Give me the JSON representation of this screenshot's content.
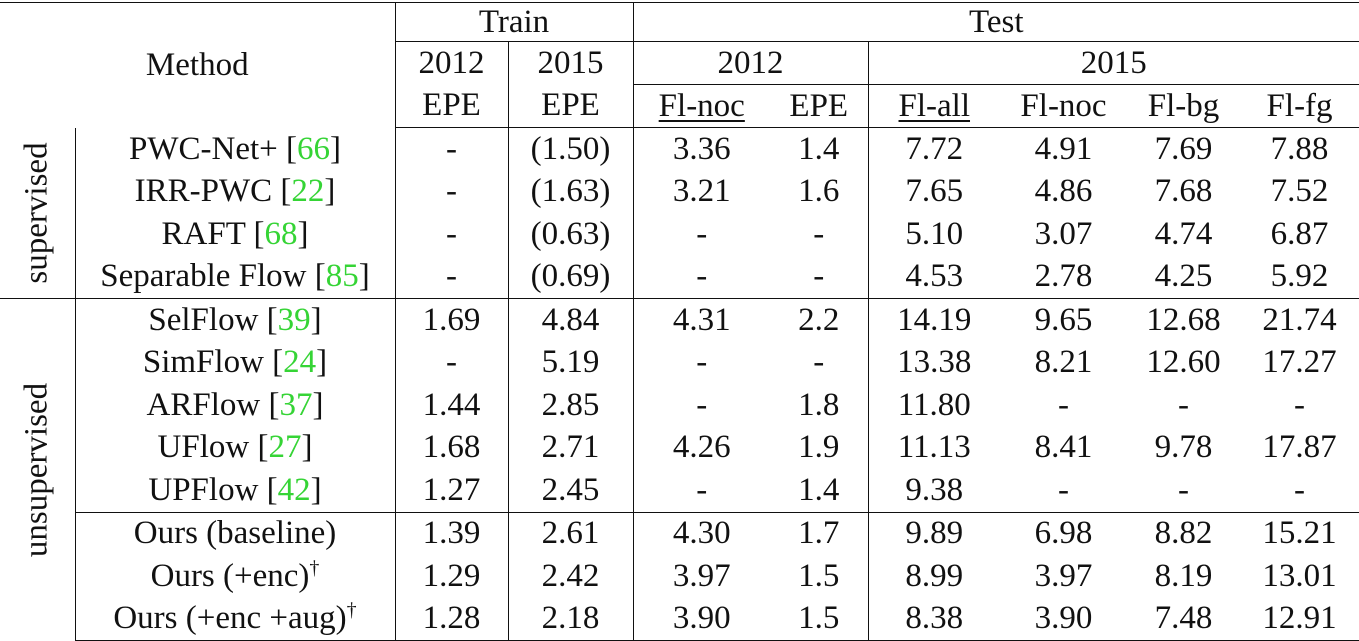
{
  "header": {
    "method": "Method",
    "train": "Train",
    "test": "Test",
    "train_years": [
      "2012",
      "2015"
    ],
    "test_year_2012": "2012",
    "test_year_2015": "2015",
    "metrics": {
      "train_2012": "EPE",
      "train_2015": "EPE",
      "test_2012_flnoc": "Fl-noc",
      "test_2012_epe": "EPE",
      "test_2015_flall": "Fl-all",
      "test_2015_flnoc": "Fl-noc",
      "test_2015_flbg": "Fl-bg",
      "test_2015_flfg": "Fl-fg"
    }
  },
  "groups": {
    "supervised": "supervised",
    "unsupervised": "unsupervised"
  },
  "rows": [
    {
      "name": "PWC-Net+  [",
      "cite": "66",
      "suffix": "]",
      "cells": [
        "-",
        "(1.50)",
        "3.36",
        "1.4",
        "7.72",
        "4.91",
        "7.69",
        "7.88"
      ]
    },
    {
      "name": "IRR-PWC [",
      "cite": "22",
      "suffix": "]",
      "cells": [
        "-",
        "(1.63)",
        "3.21",
        "1.6",
        "7.65",
        "4.86",
        "7.68",
        "7.52"
      ]
    },
    {
      "name": "RAFT [",
      "cite": "68",
      "suffix": "]",
      "cells": [
        "-",
        "(0.63)",
        "-",
        "-",
        "5.10",
        "3.07",
        "4.74",
        "6.87"
      ]
    },
    {
      "name": "Separable Flow [",
      "cite": "85",
      "suffix": "]",
      "cells": [
        "-",
        "(0.69)",
        "-",
        "-",
        "4.53",
        "2.78",
        "4.25",
        "5.92"
      ]
    },
    {
      "name": "SelFlow [",
      "cite": "39",
      "suffix": "]",
      "cells": [
        "1.69",
        "4.84",
        "4.31",
        "2.2",
        "14.19",
        "9.65",
        "12.68",
        "21.74"
      ]
    },
    {
      "name": "SimFlow [",
      "cite": "24",
      "suffix": "]",
      "cells": [
        "-",
        "5.19",
        "-",
        "-",
        "13.38",
        "8.21",
        "12.60",
        "17.27"
      ]
    },
    {
      "name": "ARFlow  [",
      "cite": "37",
      "suffix": "]",
      "cells": [
        "1.44",
        "2.85",
        "-",
        "1.8",
        "11.80",
        "-",
        "-",
        "-"
      ]
    },
    {
      "name": "UFlow  [",
      "cite": "27",
      "suffix": "]",
      "cells": [
        "1.68",
        "2.71",
        "4.26",
        "1.9",
        "11.13",
        "8.41",
        "9.78",
        "17.87"
      ]
    },
    {
      "name": "UPFlow  [",
      "cite": "42",
      "suffix": "]",
      "cells": [
        "1.27",
        "2.45",
        "-",
        "1.4",
        "9.38",
        "-",
        "-",
        "-"
      ]
    },
    {
      "name": "Ours (baseline)",
      "cite": "",
      "suffix": "",
      "sup": "",
      "cells": [
        "1.39",
        "2.61",
        "4.30",
        "1.7",
        "9.89",
        "6.98",
        "8.82",
        "15.21"
      ]
    },
    {
      "name": "Ours (+enc)",
      "cite": "",
      "suffix": "",
      "sup": "†",
      "cells": [
        "1.29",
        "2.42",
        "3.97",
        "1.5",
        "8.99",
        "3.97",
        "8.19",
        "13.01"
      ]
    },
    {
      "name": "Ours (+enc +aug)",
      "cite": "",
      "suffix": "",
      "sup": "†",
      "cells": [
        "1.28",
        "2.18",
        "3.90",
        "1.5",
        "8.38",
        "3.90",
        "7.48",
        "12.91"
      ]
    }
  ],
  "bold_cells": [
    {
      "row": 8,
      "col": 0
    },
    {
      "row": 8,
      "col": 3
    },
    {
      "row": 11,
      "col": 1
    },
    {
      "row": 11,
      "col": 2
    },
    {
      "row": 11,
      "col": 4
    },
    {
      "row": 11,
      "col": 5
    },
    {
      "row": 11,
      "col": 6
    },
    {
      "row": 11,
      "col": 7
    }
  ],
  "colors": {
    "citation": "#35d435",
    "text": "#111111"
  }
}
